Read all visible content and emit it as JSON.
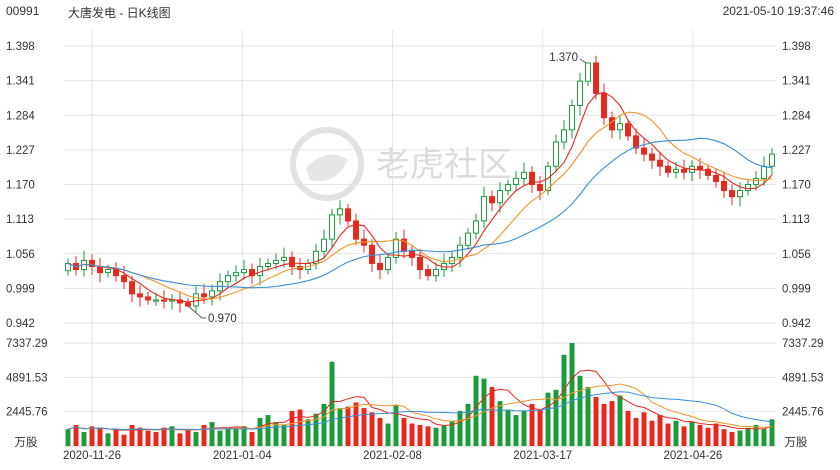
{
  "header": {
    "code": "00991",
    "title": "大唐发电 - 日K线图",
    "timestamp": "2021-05-10 19:37:46"
  },
  "watermark": {
    "text": "老虎社区"
  },
  "colors": {
    "up": "#1a9b3c",
    "down": "#e8281e",
    "ma_short": "#e8281e",
    "ma_mid": "#f0952d",
    "ma_long": "#3b8fd6",
    "grid": "#e6e6e6"
  },
  "chart_data": [
    {
      "type": "candlestick",
      "y_ticks": [
        "1.398",
        "1.341",
        "1.284",
        "1.227",
        "1.170",
        "1.113",
        "1.056",
        "0.999",
        "0.942"
      ],
      "ylim": [
        0.942,
        1.398
      ],
      "x_ticks": [
        "2020-11-26",
        "2021-01-04",
        "2021-02-08",
        "2021-03-17",
        "2021-04-26"
      ],
      "annotations": [
        {
          "label": "1.370",
          "value": 1.37
        },
        {
          "label": "0.970",
          "value": 0.97
        }
      ],
      "closes": [
        1.04,
        1.03,
        1.045,
        1.035,
        1.025,
        1.03,
        1.02,
        1.01,
        0.99,
        0.985,
        0.98,
        0.98,
        0.978,
        0.98,
        0.975,
        0.97,
        0.99,
        0.985,
        0.995,
        1.01,
        1.02,
        1.025,
        1.03,
        1.02,
        1.035,
        1.04,
        1.045,
        1.05,
        1.035,
        1.03,
        1.04,
        1.06,
        1.08,
        1.12,
        1.13,
        1.11,
        1.08,
        1.07,
        1.04,
        1.03,
        1.05,
        1.08,
        1.06,
        1.05,
        1.03,
        1.02,
        1.03,
        1.04,
        1.05,
        1.07,
        1.09,
        1.11,
        1.15,
        1.14,
        1.16,
        1.17,
        1.18,
        1.19,
        1.17,
        1.16,
        1.2,
        1.24,
        1.26,
        1.3,
        1.34,
        1.37,
        1.32,
        1.28,
        1.26,
        1.27,
        1.25,
        1.23,
        1.22,
        1.21,
        1.2,
        1.19,
        1.195,
        1.19,
        1.2,
        1.195,
        1.185,
        1.175,
        1.16,
        1.15,
        1.16,
        1.17,
        1.18,
        1.2,
        1.22
      ]
    },
    {
      "type": "bar",
      "name": "volume",
      "unit_label": "万股",
      "y_ticks": [
        "7337.29",
        "4891.53",
        "2445.76"
      ],
      "ylim": [
        0,
        7337.29
      ],
      "values": [
        1200,
        1500,
        1000,
        1400,
        1300,
        900,
        1200,
        800,
        1500,
        1300,
        1100,
        1000,
        1300,
        1400,
        900,
        1200,
        1000,
        1500,
        1700,
        1100,
        1200,
        1300,
        1400,
        1000,
        2000,
        2200,
        1700,
        1500,
        2500,
        2600,
        1900,
        2300,
        3000,
        6000,
        2700,
        2800,
        3100,
        2700,
        2400,
        2000,
        1600,
        2900,
        2000,
        1600,
        1500,
        1400,
        1300,
        1500,
        1800,
        2500,
        3000,
        5000,
        4800,
        4200,
        3200,
        2600,
        2200,
        2500,
        3000,
        2600,
        3800,
        4000,
        6500,
        7337,
        5000,
        4200,
        3500,
        3000,
        3200,
        3600,
        2500,
        2000,
        2400,
        1800,
        2200,
        1600,
        1800,
        1400,
        1700,
        1500,
        1300,
        1600,
        1200,
        1000,
        1100,
        1300,
        1500,
        1200,
        1900
      ],
      "directions": [
        1,
        0,
        1,
        0,
        0,
        1,
        0,
        0,
        0,
        0,
        0,
        0,
        0,
        1,
        0,
        0,
        1,
        0,
        1,
        1,
        1,
        1,
        1,
        0,
        1,
        1,
        1,
        1,
        0,
        0,
        1,
        1,
        1,
        1,
        1,
        0,
        0,
        0,
        0,
        0,
        1,
        1,
        0,
        0,
        0,
        0,
        1,
        1,
        1,
        1,
        1,
        1,
        1,
        0,
        1,
        1,
        1,
        1,
        0,
        0,
        1,
        1,
        1,
        1,
        1,
        1,
        0,
        0,
        0,
        1,
        0,
        0,
        0,
        0,
        0,
        0,
        1,
        0,
        1,
        0,
        0,
        0,
        0,
        0,
        1,
        1,
        1,
        1,
        1
      ]
    }
  ]
}
